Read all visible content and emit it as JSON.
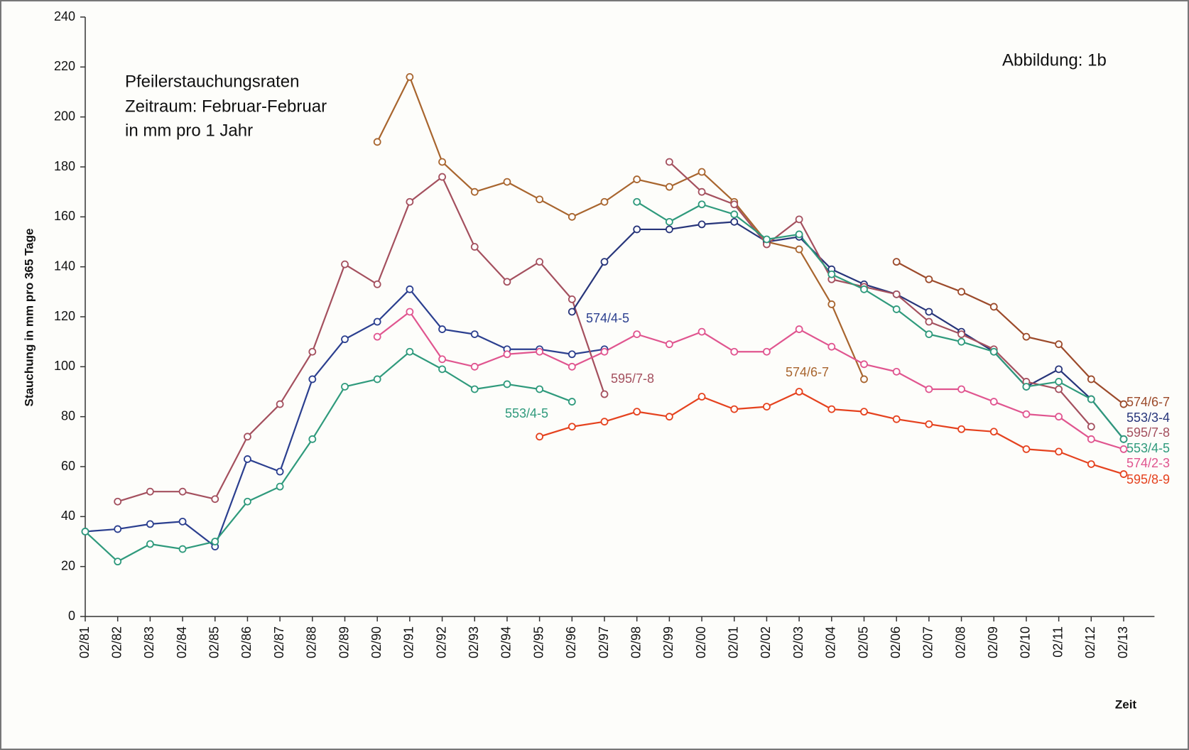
{
  "chart_data": {
    "type": "line",
    "title": [
      "Pfeilerstauchungsraten",
      "Zeitraum: Februar-Februar",
      "in mm pro 1 Jahr"
    ],
    "figure_label": "Abbildung:  1b",
    "y_label": "Stauchung in mm pro 365 Tage",
    "x_label": "Zeit",
    "categories": [
      "02/81",
      "02/82",
      "02/83",
      "02/84",
      "02/85",
      "02/86",
      "02/87",
      "02/88",
      "02/89",
      "02/90",
      "02/91",
      "02/92",
      "02/93",
      "02/94",
      "02/95",
      "02/96",
      "02/97",
      "02/98",
      "02/99",
      "02/00",
      "02/01",
      "02/02",
      "02/03",
      "02/04",
      "02/05",
      "02/06",
      "02/07",
      "02/08",
      "02/09",
      "02/10",
      "02/11",
      "02/12",
      "02/13"
    ],
    "ylim": [
      0,
      240
    ],
    "yticks": [
      0,
      20,
      40,
      60,
      80,
      100,
      120,
      140,
      160,
      180,
      200,
      220,
      240
    ],
    "grid": false,
    "series": [
      {
        "name": "574/4-5",
        "color": "#2b3f8f",
        "values": [
          34,
          35,
          37,
          38,
          28,
          63,
          58,
          95,
          111,
          118,
          131,
          115,
          113,
          107,
          107,
          105,
          107,
          null,
          null,
          null,
          null,
          null,
          null,
          null,
          null,
          null,
          null,
          null,
          null,
          null,
          null,
          null,
          null
        ]
      },
      {
        "name": "553/4-5",
        "color": "#2f9a7c",
        "values": [
          34,
          22,
          29,
          27,
          30,
          46,
          52,
          71,
          92,
          95,
          106,
          99,
          91,
          93,
          91,
          86,
          null,
          null,
          null,
          null,
          null,
          null,
          null,
          null,
          null,
          null,
          null,
          null,
          null,
          null,
          null,
          null,
          null
        ]
      },
      {
        "name": "595/7-8",
        "color": "#a4505e",
        "values": [
          null,
          46,
          50,
          50,
          47,
          72,
          85,
          106,
          141,
          133,
          166,
          176,
          148,
          134,
          142,
          127,
          89,
          null,
          null,
          null,
          null,
          null,
          null,
          null,
          null,
          null,
          null,
          null,
          null,
          null,
          null,
          null,
          null
        ]
      },
      {
        "name": "574/6-7",
        "color": "#a8652e",
        "values": [
          null,
          null,
          null,
          null,
          null,
          null,
          null,
          null,
          null,
          190,
          216,
          182,
          170,
          174,
          167,
          160,
          166,
          175,
          172,
          178,
          166,
          150,
          147,
          125,
          95,
          null,
          null,
          null,
          null,
          null,
          null,
          null,
          null
        ]
      },
      {
        "name": "553/3-4",
        "color": "#27357a",
        "values": [
          null,
          null,
          null,
          null,
          null,
          null,
          null,
          null,
          null,
          null,
          null,
          null,
          null,
          null,
          null,
          122,
          142,
          155,
          155,
          157,
          158,
          150,
          152,
          139,
          133,
          129,
          122,
          114,
          106,
          92,
          99,
          87,
          71
        ]
      },
      {
        "name": "595/7-8",
        "color": "#a4505e",
        "values": [
          null,
          null,
          null,
          null,
          null,
          null,
          null,
          null,
          null,
          null,
          null,
          null,
          null,
          null,
          null,
          null,
          null,
          null,
          182,
          170,
          165,
          149,
          159,
          135,
          132,
          129,
          118,
          113,
          107,
          94,
          91,
          76,
          null
        ]
      },
      {
        "name": "553/4-5",
        "color": "#2f9a7c",
        "values": [
          null,
          null,
          null,
          null,
          null,
          null,
          null,
          null,
          null,
          null,
          null,
          null,
          null,
          null,
          null,
          null,
          null,
          166,
          158,
          165,
          161,
          151,
          153,
          137,
          131,
          123,
          113,
          110,
          106,
          92,
          94,
          87,
          71
        ]
      },
      {
        "name": "574/6-7",
        "color": "#9c4a2a",
        "values": [
          null,
          null,
          null,
          null,
          null,
          null,
          null,
          null,
          null,
          null,
          null,
          null,
          null,
          null,
          null,
          null,
          null,
          null,
          null,
          null,
          null,
          null,
          null,
          null,
          null,
          142,
          135,
          130,
          124,
          112,
          109,
          95,
          85
        ]
      },
      {
        "name": "574/2-3",
        "color": "#e0558f",
        "values": [
          null,
          null,
          null,
          null,
          null,
          null,
          null,
          null,
          null,
          112,
          122,
          103,
          100,
          105,
          106,
          100,
          106,
          113,
          109,
          114,
          106,
          106,
          115,
          108,
          101,
          98,
          91,
          91,
          86,
          81,
          80,
          71,
          67
        ]
      },
      {
        "name": "595/8-9",
        "color": "#e5421e",
        "values": [
          null,
          null,
          null,
          null,
          null,
          null,
          null,
          null,
          null,
          null,
          null,
          null,
          null,
          null,
          72,
          76,
          78,
          82,
          80,
          88,
          83,
          84,
          90,
          83,
          82,
          79,
          77,
          75,
          74,
          67,
          66,
          61,
          57
        ]
      }
    ]
  }
}
